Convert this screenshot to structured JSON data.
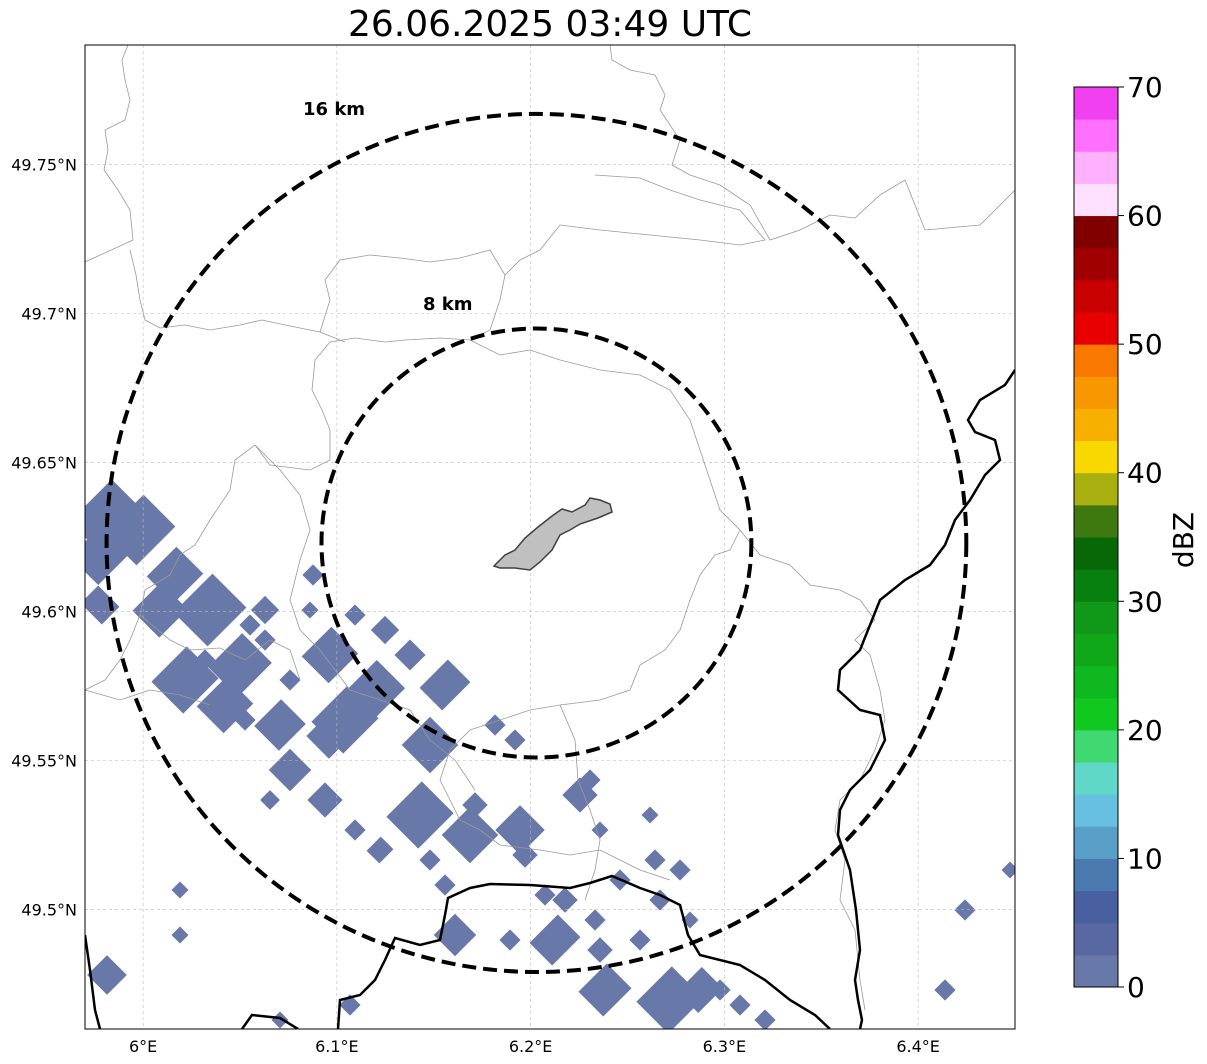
{
  "title": "26.06.2025 03:49 UTC",
  "map": {
    "lon_range": [
      5.97,
      6.45
    ],
    "lat_range": [
      49.46,
      49.79
    ],
    "lat_ticks": [
      {
        "value": 49.75,
        "label": "49.75°N"
      },
      {
        "value": 49.7,
        "label": "49.7°N"
      },
      {
        "value": 49.65,
        "label": "49.65°N"
      },
      {
        "value": 49.6,
        "label": "49.6°N"
      },
      {
        "value": 49.55,
        "label": "49.55°N"
      },
      {
        "value": 49.5,
        "label": "49.5°N"
      }
    ],
    "lon_ticks": [
      {
        "value": 6.0,
        "label": "6°E"
      },
      {
        "value": 6.1,
        "label": "6.1°E"
      },
      {
        "value": 6.2,
        "label": "6.2°E"
      },
      {
        "value": 6.3,
        "label": "6.3°E"
      },
      {
        "value": 6.4,
        "label": "6.4°E"
      }
    ],
    "gridlines": true,
    "center": {
      "lon": 6.203,
      "lat": 49.623
    },
    "rings": [
      {
        "radius_km": 16,
        "label": "16 km"
      },
      {
        "radius_km": 8,
        "label": "8 km"
      }
    ],
    "echo_color": "#6878a8"
  },
  "colorbar": {
    "label": "dBZ",
    "min": 0,
    "max": 70,
    "ticks": [
      {
        "value": 0,
        "label": "0"
      },
      {
        "value": 10,
        "label": "10"
      },
      {
        "value": 20,
        "label": "20"
      },
      {
        "value": 30,
        "label": "30"
      },
      {
        "value": 40,
        "label": "40"
      },
      {
        "value": 50,
        "label": "50"
      },
      {
        "value": 60,
        "label": "60"
      },
      {
        "value": 70,
        "label": "70"
      }
    ],
    "colors": [
      "#6878a8",
      "#5868a0",
      "#4860a0",
      "#4a7ab0",
      "#58a0c8",
      "#68c0e0",
      "#60d8c8",
      "#40d870",
      "#10c820",
      "#10b820",
      "#10a818",
      "#109818",
      "#088010",
      "#086808",
      "#407810",
      "#a8b010",
      "#f8d800",
      "#f8b000",
      "#f89800",
      "#f87800",
      "#e80000",
      "#c80000",
      "#a00000",
      "#800000",
      "#ffe0ff",
      "#ffb0ff",
      "#ff70ff",
      "#f040f0"
    ]
  }
}
